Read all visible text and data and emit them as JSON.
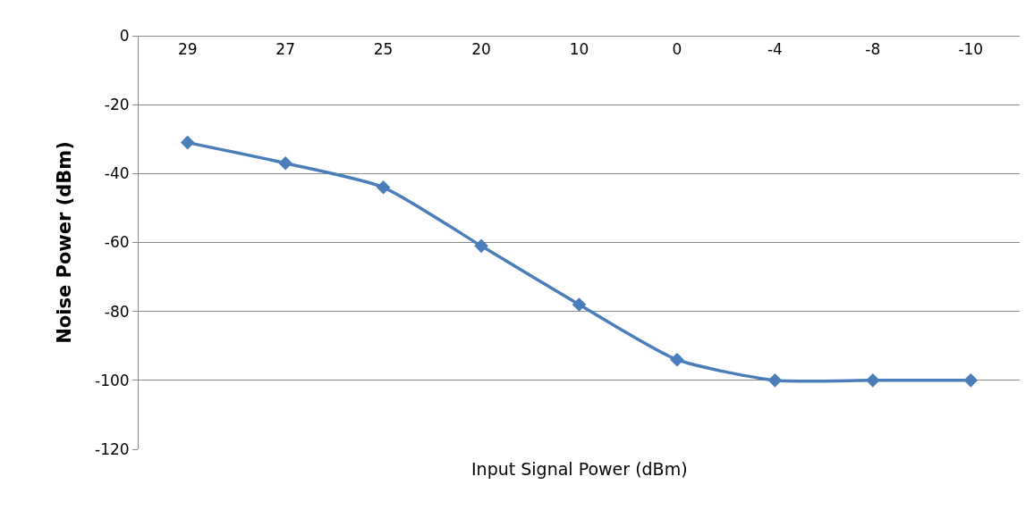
{
  "chart_data": {
    "type": "line",
    "xlabel": "Input Signal Power (dBm)",
    "ylabel": "Noise Power (dBm)",
    "categories": [
      "29",
      "27",
      "25",
      "20",
      "10",
      "0",
      "-4",
      "-8",
      "-10"
    ],
    "series": [
      {
        "color": "#4a7ebb",
        "values": [
          -31,
          -37,
          -44,
          -61,
          -78,
          -94,
          -100,
          -100,
          -100
        ]
      }
    ],
    "ylim": [
      -120,
      0
    ],
    "yticks": [
      -120,
      -100,
      -80,
      -60,
      -40,
      -20,
      0
    ],
    "grid": "y",
    "legend": false,
    "marker": "diamond",
    "line_style": "solid"
  }
}
